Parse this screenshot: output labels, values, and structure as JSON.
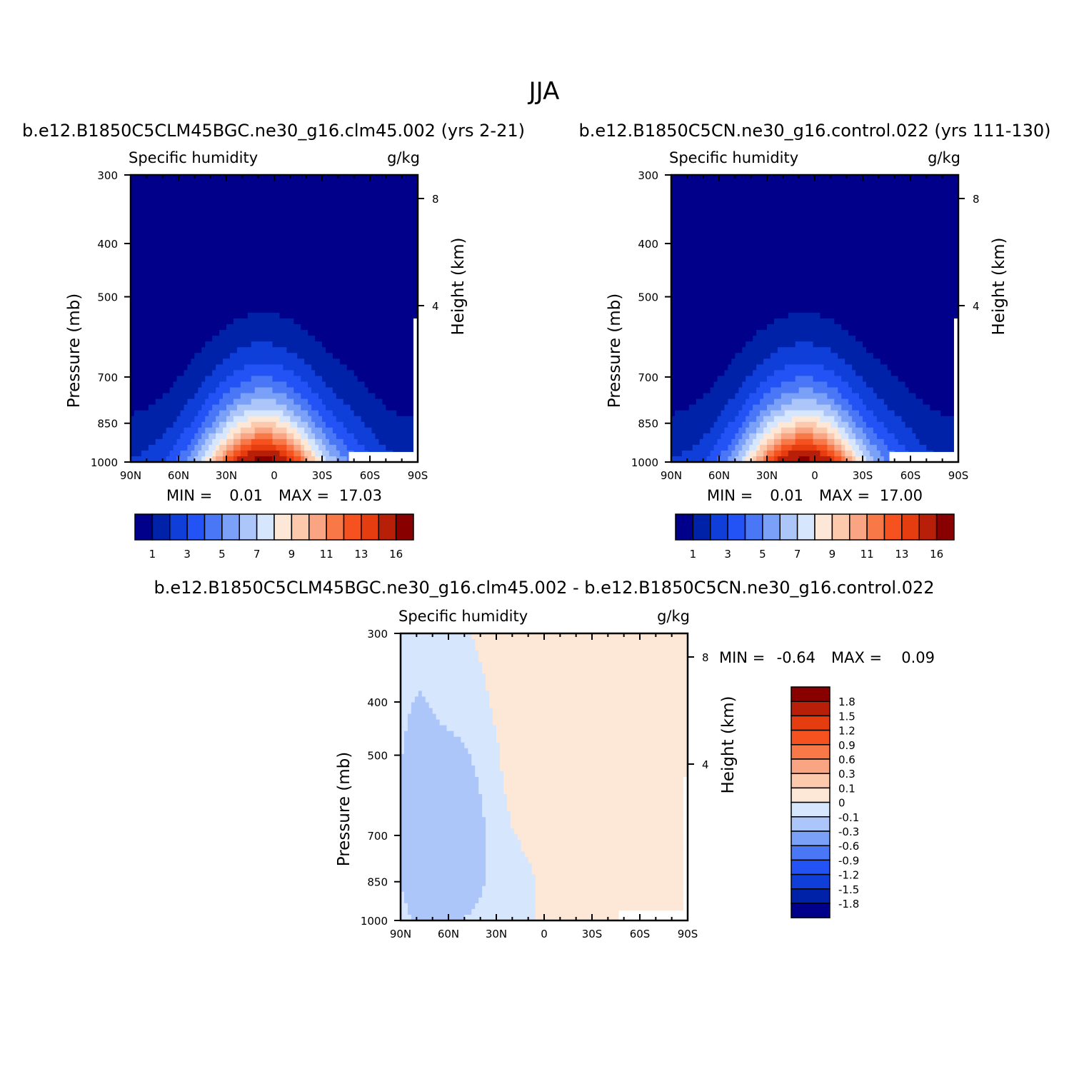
{
  "figure": {
    "title": "JJA"
  },
  "chart_data": [
    {
      "type": "contour",
      "case_title": "b.e12.B1850C5CLM45BGC.ne30_g16.clm45.002 (yrs 2-21)",
      "left_label": "Specific humidity",
      "right_label": "g/kg",
      "ylabel": "Pressure (mb)",
      "ylabel_right": "Height (km)",
      "x_ticks": [
        "90N",
        "60N",
        "30N",
        "0",
        "30S",
        "60S",
        "90S"
      ],
      "y_ticks": [
        "300",
        "400",
        "500",
        "700",
        "850",
        "1000"
      ],
      "y_right_ticks": [
        "8",
        "4"
      ],
      "min_label": "MIN =",
      "min_value": "0.01",
      "max_label": "MAX =",
      "max_value": "17.03",
      "colorbar_labels": [
        "1",
        "3",
        "5",
        "7",
        "9",
        "11",
        "13",
        "16"
      ],
      "colors": [
        "#00008b",
        "#0022a8",
        "#0f3ed8",
        "#2352f5",
        "#4a77f5",
        "#7aa0f7",
        "#adc6fa",
        "#d6e6fc",
        "#fde7d6",
        "#fcc9ad",
        "#f9a482",
        "#f87848",
        "#f6521f",
        "#e53d0f",
        "#b81f08",
        "#880000"
      ]
    },
    {
      "type": "contour",
      "case_title": "b.e12.B1850C5CN.ne30_g16.control.022 (yrs 111-130)",
      "left_label": "Specific humidity",
      "right_label": "g/kg",
      "ylabel": "Pressure (mb)",
      "ylabel_right": "Height (km)",
      "x_ticks": [
        "90N",
        "60N",
        "30N",
        "0",
        "30S",
        "60S",
        "90S"
      ],
      "y_ticks": [
        "300",
        "400",
        "500",
        "700",
        "850",
        "1000"
      ],
      "y_right_ticks": [
        "8",
        "4"
      ],
      "min_label": "MIN =",
      "min_value": "0.01",
      "max_label": "MAX =",
      "max_value": "17.00",
      "colorbar_labels": [
        "1",
        "3",
        "5",
        "7",
        "9",
        "11",
        "13",
        "16"
      ],
      "colors": [
        "#00008b",
        "#0022a8",
        "#0f3ed8",
        "#2352f5",
        "#4a77f5",
        "#7aa0f7",
        "#adc6fa",
        "#d6e6fc",
        "#fde7d6",
        "#fcc9ad",
        "#f9a482",
        "#f87848",
        "#f6521f",
        "#e53d0f",
        "#b81f08",
        "#880000"
      ]
    },
    {
      "type": "contour",
      "case_title": "b.e12.B1850C5CLM45BGC.ne30_g16.clm45.002 - b.e12.B1850C5CN.ne30_g16.control.022",
      "left_label": "Specific humidity",
      "right_label": "g/kg",
      "ylabel": "Pressure (mb)",
      "ylabel_right": "Height (km)",
      "x_ticks": [
        "90N",
        "60N",
        "30N",
        "0",
        "30S",
        "60S",
        "90S"
      ],
      "y_ticks": [
        "300",
        "400",
        "500",
        "700",
        "850",
        "1000"
      ],
      "y_right_ticks": [
        "8",
        "4"
      ],
      "min_label": "MIN =",
      "min_value": "-0.64",
      "max_label": "MAX =",
      "max_value": "0.09",
      "colorbar_labels": [
        "1.8",
        "1.5",
        "1.2",
        "0.9",
        "0.6",
        "0.3",
        "0.1",
        "0",
        "-0.1",
        "-0.3",
        "-0.6",
        "-0.9",
        "-1.2",
        "-1.5",
        "-1.8"
      ],
      "colors": [
        "#880000",
        "#b81f08",
        "#e53d0f",
        "#f6521f",
        "#f87848",
        "#f9a482",
        "#fcc9ad",
        "#fde7d6",
        "#d6e6fc",
        "#adc6fa",
        "#7aa0f7",
        "#4a77f5",
        "#2352f5",
        "#0f3ed8",
        "#0022a8",
        "#00008b"
      ]
    }
  ]
}
